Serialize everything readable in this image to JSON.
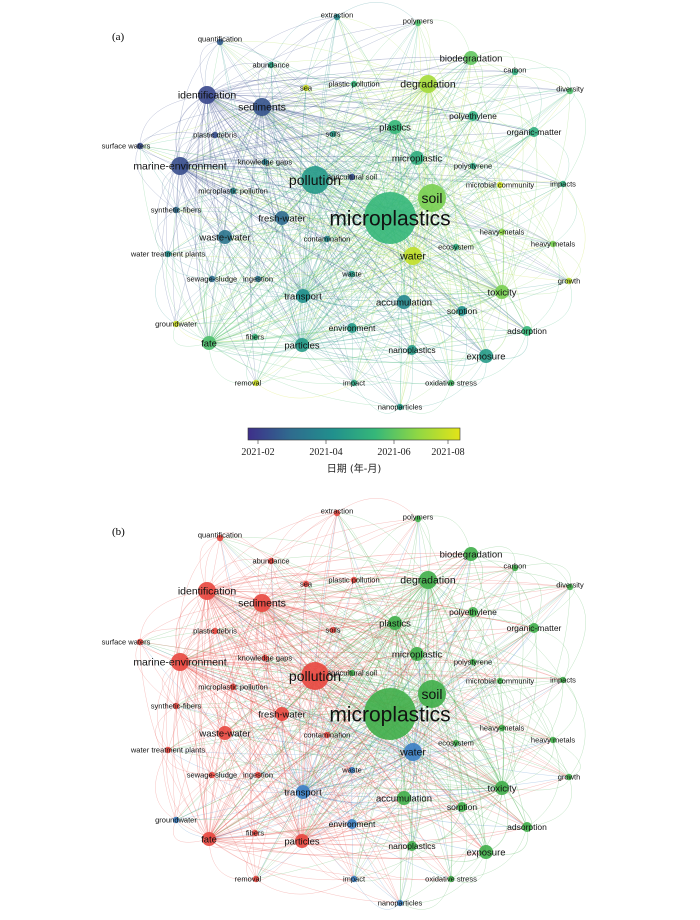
{
  "panels": [
    {
      "id": "a",
      "label": "(a)",
      "coloring": "time"
    },
    {
      "id": "b",
      "label": "(b)",
      "coloring": "cluster"
    }
  ],
  "colorbar": {
    "ticks": [
      "2021-02",
      "2021-04",
      "2021-06",
      "2021-08"
    ],
    "title": "日期 (年-月)",
    "colors": [
      "#3e2f8a",
      "#2f6b8e",
      "#21908d",
      "#35b779",
      "#8fd744",
      "#e3e418"
    ]
  },
  "cluster_colors": {
    "red": "#e8473f",
    "green": "#3fae49",
    "blue": "#3b7fc4"
  },
  "nodes": [
    {
      "label": "microplastics",
      "weight": 10,
      "time": 0.6,
      "cluster": "green"
    },
    {
      "label": "soil",
      "weight": 6,
      "time": 0.75,
      "cluster": "green"
    },
    {
      "label": "pollution",
      "weight": 6,
      "time": 0.45,
      "cluster": "red"
    },
    {
      "label": "water",
      "weight": 4,
      "time": 0.92,
      "cluster": "blue"
    },
    {
      "label": "identification",
      "weight": 4,
      "time": 0.08,
      "cluster": "red"
    },
    {
      "label": "sediments",
      "weight": 4,
      "time": 0.12,
      "cluster": "red"
    },
    {
      "label": "marine-environment",
      "weight": 4,
      "time": 0.1,
      "cluster": "red"
    },
    {
      "label": "degradation",
      "weight": 4,
      "time": 0.85,
      "cluster": "green"
    },
    {
      "label": "biodegradation",
      "weight": 3,
      "time": 0.7,
      "cluster": "green"
    },
    {
      "label": "plastics",
      "weight": 3,
      "time": 0.6,
      "cluster": "green"
    },
    {
      "label": "microplastic",
      "weight": 3,
      "time": 0.55,
      "cluster": "green"
    },
    {
      "label": "transport",
      "weight": 3,
      "time": 0.4,
      "cluster": "blue"
    },
    {
      "label": "accumulation",
      "weight": 3,
      "time": 0.35,
      "cluster": "green"
    },
    {
      "label": "toxicity",
      "weight": 3,
      "time": 0.75,
      "cluster": "green"
    },
    {
      "label": "exposure",
      "weight": 3,
      "time": 0.45,
      "cluster": "green"
    },
    {
      "label": "particles",
      "weight": 3,
      "time": 0.45,
      "cluster": "red"
    },
    {
      "label": "fate",
      "weight": 3,
      "time": 0.65,
      "cluster": "red"
    },
    {
      "label": "fresh-water",
      "weight": 3,
      "time": 0.2,
      "cluster": "red"
    },
    {
      "label": "waste-water",
      "weight": 3,
      "time": 0.25,
      "cluster": "red"
    },
    {
      "label": "polyethylene",
      "weight": 2,
      "time": 0.55,
      "cluster": "green"
    },
    {
      "label": "adsorption",
      "weight": 2,
      "time": 0.6,
      "cluster": "green"
    },
    {
      "label": "nanoplastics",
      "weight": 2,
      "time": 0.45,
      "cluster": "green"
    },
    {
      "label": "environment",
      "weight": 2,
      "time": 0.45,
      "cluster": "blue"
    },
    {
      "label": "sorption",
      "weight": 2,
      "time": 0.4,
      "cluster": "green"
    },
    {
      "label": "organic-matter",
      "weight": 2,
      "time": 0.55,
      "cluster": "green"
    },
    {
      "label": "extraction",
      "weight": 1,
      "time": 0.35,
      "cluster": "red"
    },
    {
      "label": "polymers",
      "weight": 1,
      "time": 0.65,
      "cluster": "green"
    },
    {
      "label": "quantification",
      "weight": 1,
      "time": 0.15,
      "cluster": "red"
    },
    {
      "label": "abundance",
      "weight": 1,
      "time": 0.5,
      "cluster": "red"
    },
    {
      "label": "plastic pollution",
      "weight": 1,
      "time": 0.6,
      "cluster": "red"
    },
    {
      "label": "sea",
      "weight": 1,
      "time": 0.95,
      "cluster": "red"
    },
    {
      "label": "carbon",
      "weight": 1,
      "time": 0.55,
      "cluster": "green"
    },
    {
      "label": "diversity",
      "weight": 1,
      "time": 0.65,
      "cluster": "green"
    },
    {
      "label": "soils",
      "weight": 1,
      "time": 0.45,
      "cluster": "red"
    },
    {
      "label": "plastic debris",
      "weight": 1,
      "time": 0.1,
      "cluster": "red"
    },
    {
      "label": "surface waters",
      "weight": 1,
      "time": 0.1,
      "cluster": "red"
    },
    {
      "label": "knowledge gaps",
      "weight": 1,
      "time": 0.3,
      "cluster": "red"
    },
    {
      "label": "agricultural soil",
      "weight": 1,
      "time": 0.1,
      "cluster": "green"
    },
    {
      "label": "polystyrene",
      "weight": 1,
      "time": 0.5,
      "cluster": "green"
    },
    {
      "label": "microbial community",
      "weight": 1,
      "time": 0.95,
      "cluster": "green"
    },
    {
      "label": "impacts",
      "weight": 1,
      "time": 0.55,
      "cluster": "green"
    },
    {
      "label": "microplastic pollution",
      "weight": 1,
      "time": 0.35,
      "cluster": "red"
    },
    {
      "label": "synthetic-fibers",
      "weight": 1,
      "time": 0.2,
      "cluster": "red"
    },
    {
      "label": "heavy-metals",
      "weight": 1,
      "time": 0.8,
      "cluster": "green"
    },
    {
      "label": "heavy metals",
      "weight": 1,
      "time": 0.75,
      "cluster": "green"
    },
    {
      "label": "contamination",
      "weight": 1,
      "time": 0.35,
      "cluster": "red"
    },
    {
      "label": "ecosystem",
      "weight": 1,
      "time": 0.55,
      "cluster": "green"
    },
    {
      "label": "water treatment plants",
      "weight": 1,
      "time": 0.4,
      "cluster": "red"
    },
    {
      "label": "growth",
      "weight": 1,
      "time": 0.9,
      "cluster": "green"
    },
    {
      "label": "waste",
      "weight": 1,
      "time": 0.45,
      "cluster": "blue"
    },
    {
      "label": "sewage-sludge",
      "weight": 1,
      "time": 0.2,
      "cluster": "red"
    },
    {
      "label": "ingestion",
      "weight": 1,
      "time": 0.25,
      "cluster": "red"
    },
    {
      "label": "groundwater",
      "weight": 1,
      "time": 0.95,
      "cluster": "blue"
    },
    {
      "label": "fibers",
      "weight": 1,
      "time": 0.6,
      "cluster": "red"
    },
    {
      "label": "removal",
      "weight": 1,
      "time": 0.95,
      "cluster": "red"
    },
    {
      "label": "impact",
      "weight": 1,
      "time": 0.5,
      "cluster": "blue"
    },
    {
      "label": "oxidative stress",
      "weight": 1,
      "time": 0.65,
      "cluster": "green"
    },
    {
      "label": "nanoparticles",
      "weight": 1,
      "time": 0.45,
      "cluster": "blue"
    }
  ]
}
